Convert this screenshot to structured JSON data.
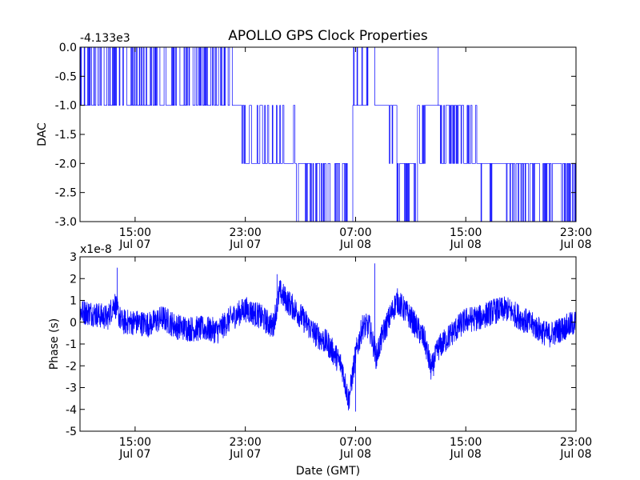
{
  "figure": {
    "title": "APOLLO GPS Clock Properties",
    "xlabel": "Date (GMT)"
  },
  "chart_data": [
    {
      "type": "line",
      "name": "dac-panel",
      "ylabel": "DAC",
      "offset_text": "-4.133e3",
      "ylim": [
        -3.0,
        0.0
      ],
      "yticks": [
        "0.0",
        "-0.5",
        "-1.0",
        "-1.5",
        "-2.0",
        "-2.5",
        "-3.0"
      ],
      "xticks": [
        {
          "time": "15:00",
          "date": "Jul 07"
        },
        {
          "time": "23:00",
          "date": "Jul 07"
        },
        {
          "time": "07:00",
          "date": "Jul 08"
        },
        {
          "time": "15:00",
          "date": "Jul 08"
        },
        {
          "time": "23:00",
          "date": "Jul 08"
        }
      ],
      "x_units": "hours since Jul 07 00:00 GMT",
      "xlim": [
        11.0,
        47.0
      ],
      "series_color": "#0000ff",
      "segments": [
        {
          "start": 11.0,
          "end": 22.1,
          "level": -1,
          "alt": 0,
          "toggle": 0.45
        },
        {
          "start": 22.1,
          "end": 23.0,
          "level": -1,
          "alt": -2,
          "toggle": 0.2
        },
        {
          "start": 23.0,
          "end": 26.6,
          "level": -2,
          "alt": -1,
          "toggle": 0.25
        },
        {
          "start": 26.6,
          "end": 30.8,
          "level": -2,
          "alt": -3,
          "toggle": 0.45
        },
        {
          "start": 30.8,
          "end": 31.8,
          "level": -1,
          "alt": 0,
          "toggle": 0.1
        },
        {
          "start": 31.8,
          "end": 32.4,
          "level": 0,
          "alt": -1,
          "toggle": 0.05
        },
        {
          "start": 32.4,
          "end": 34.0,
          "level": -1,
          "alt": -2,
          "toggle": 0.1
        },
        {
          "start": 34.0,
          "end": 35.5,
          "level": -2,
          "alt": -3,
          "toggle": 0.4
        },
        {
          "start": 35.5,
          "end": 36.3,
          "level": -2,
          "alt": -1,
          "toggle": 0.4
        },
        {
          "start": 36.3,
          "end": 37.1,
          "level": -1,
          "alt": -1,
          "toggle": 0.0
        },
        {
          "start": 37.1,
          "end": 39.9,
          "level": -1,
          "alt": -2,
          "toggle": 0.5
        },
        {
          "start": 39.9,
          "end": 41.8,
          "level": -2,
          "alt": -3,
          "toggle": 0.15
        },
        {
          "start": 41.8,
          "end": 43.8,
          "level": -2,
          "alt": -3,
          "toggle": 0.35
        },
        {
          "start": 43.8,
          "end": 47.0,
          "level": -2,
          "alt": -3,
          "toggle": 0.4
        }
      ],
      "spikes": [
        37.0
      ]
    },
    {
      "type": "line",
      "name": "phase-panel",
      "ylabel": "Phase (s)",
      "offset_text": "x1e-8",
      "ylim": [
        -5,
        3
      ],
      "yticks": [
        "3",
        "2",
        "1",
        "0",
        "-1",
        "-2",
        "-3",
        "-4",
        "-5"
      ],
      "xticks": [
        {
          "time": "15:00",
          "date": "Jul 07"
        },
        {
          "time": "23:00",
          "date": "Jul 07"
        },
        {
          "time": "07:00",
          "date": "Jul 08"
        },
        {
          "time": "15:00",
          "date": "Jul 08"
        },
        {
          "time": "23:00",
          "date": "Jul 08"
        }
      ],
      "x_units": "hours since Jul 07 00:00 GMT",
      "xlim": [
        11.0,
        47.0
      ],
      "series_color": "#0000ff",
      "trend_points": [
        [
          11.0,
          0.5
        ],
        [
          12.0,
          0.4
        ],
        [
          13.0,
          0.2
        ],
        [
          13.5,
          0.9
        ],
        [
          14.0,
          0.0
        ],
        [
          15.0,
          0.0
        ],
        [
          16.0,
          -0.1
        ],
        [
          17.0,
          0.2
        ],
        [
          18.0,
          -0.2
        ],
        [
          19.0,
          -0.3
        ],
        [
          20.0,
          -0.3
        ],
        [
          21.0,
          -0.4
        ],
        [
          22.0,
          0.2
        ],
        [
          23.0,
          0.6
        ],
        [
          24.0,
          0.3
        ],
        [
          25.0,
          -0.2
        ],
        [
          25.5,
          1.4
        ],
        [
          26.0,
          1.0
        ],
        [
          27.0,
          0.3
        ],
        [
          28.0,
          -0.5
        ],
        [
          29.0,
          -1.0
        ],
        [
          30.0,
          -2.0
        ],
        [
          30.5,
          -3.6
        ],
        [
          31.0,
          -1.5
        ],
        [
          31.5,
          -0.2
        ],
        [
          32.0,
          -0.2
        ],
        [
          32.5,
          -1.6
        ],
        [
          33.0,
          -0.5
        ],
        [
          34.0,
          1.0
        ],
        [
          35.0,
          0.2
        ],
        [
          36.0,
          -0.8
        ],
        [
          36.5,
          -2.2
        ],
        [
          37.0,
          -1.2
        ],
        [
          38.0,
          -0.5
        ],
        [
          39.0,
          0.1
        ],
        [
          40.0,
          0.2
        ],
        [
          41.0,
          0.5
        ],
        [
          42.0,
          0.6
        ],
        [
          43.0,
          0.2
        ],
        [
          44.0,
          -0.2
        ],
        [
          45.0,
          -0.6
        ],
        [
          46.0,
          -0.3
        ],
        [
          47.0,
          0.0
        ]
      ],
      "spikes": [
        [
          13.7,
          2.5
        ],
        [
          25.3,
          2.2
        ],
        [
          32.4,
          2.7
        ],
        [
          31.0,
          -4.1
        ]
      ]
    }
  ]
}
